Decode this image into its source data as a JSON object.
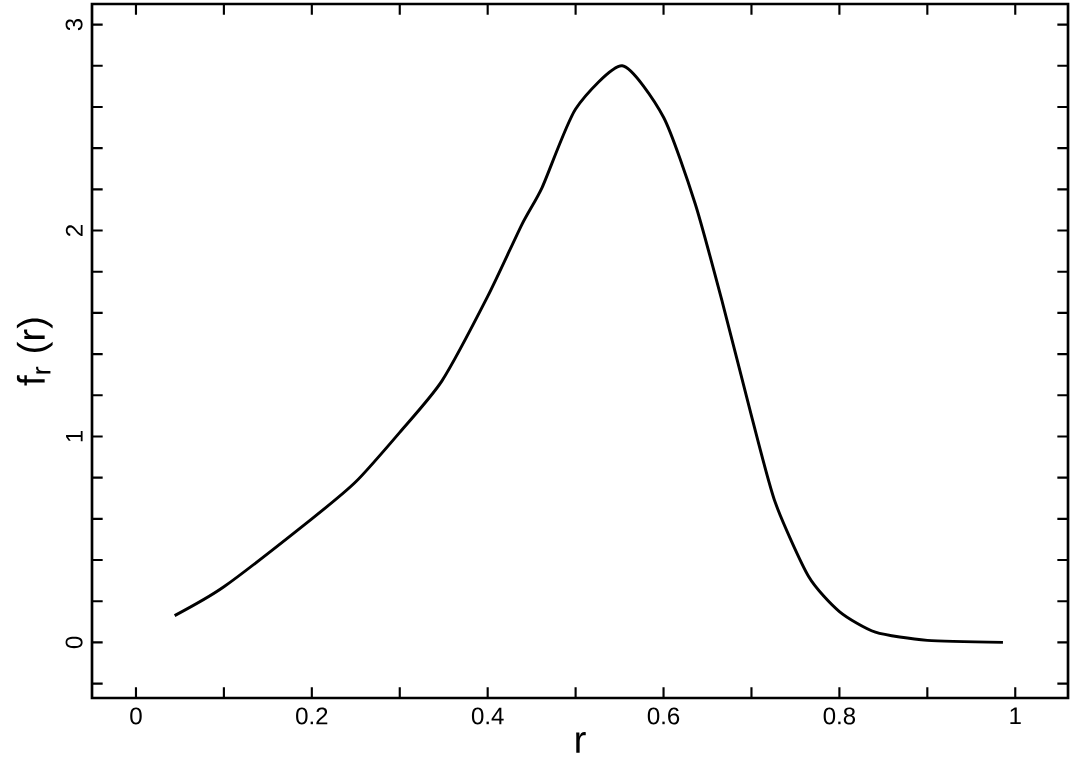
{
  "chart_data": {
    "type": "line",
    "xlabel": "r",
    "ylabel": "f$_{r}$ (r)",
    "xlim": [
      -0.05,
      1.06
    ],
    "ylim": [
      -0.27,
      3.1
    ],
    "xticks": [
      0,
      {
        "value": 0.1,
        "label": null
      },
      {
        "value": 0.2,
        "label": "0.2"
      },
      {
        "value": 0.3,
        "label": null
      },
      {
        "value": 0.4,
        "label": "0.4"
      },
      {
        "value": 0.5,
        "label": null
      },
      {
        "value": 0.6,
        "label": "0.6"
      },
      {
        "value": 0.7,
        "label": null
      },
      {
        "value": 0.8,
        "label": "0.8"
      },
      {
        "value": 0.9,
        "label": null
      },
      1
    ],
    "yticks": [
      {
        "value": -0.2,
        "label": null
      },
      0,
      {
        "value": 0.2,
        "label": null
      },
      {
        "value": 0.4,
        "label": null
      },
      {
        "value": 0.6,
        "label": null
      },
      {
        "value": 0.8,
        "label": null
      },
      1,
      {
        "value": 1.2,
        "label": null
      },
      {
        "value": 1.4,
        "label": null
      },
      {
        "value": 1.6,
        "label": null
      },
      {
        "value": 1.8,
        "label": null
      },
      2,
      {
        "value": 2.2,
        "label": null
      },
      {
        "value": 2.4,
        "label": null
      },
      {
        "value": 2.6,
        "label": null
      },
      {
        "value": 2.8,
        "label": null
      },
      3
    ],
    "series": [
      {
        "color": "#000000",
        "x": [
          0.044,
          0.1,
          0.2,
          0.25,
          0.3,
          0.348,
          0.4,
          0.439,
          0.462,
          0.5,
          0.553,
          0.6,
          0.636,
          0.667,
          0.7,
          0.727,
          0.765,
          0.8,
          0.841,
          0.9,
          0.986
        ],
        "values": [
          0.13,
          0.27,
          0.6,
          0.78,
          1.02,
          1.27,
          1.68,
          2.03,
          2.21,
          2.59,
          2.8,
          2.55,
          2.13,
          1.65,
          1.1,
          0.68,
          0.32,
          0.15,
          0.05,
          0.01,
          0.0
        ]
      }
    ]
  }
}
